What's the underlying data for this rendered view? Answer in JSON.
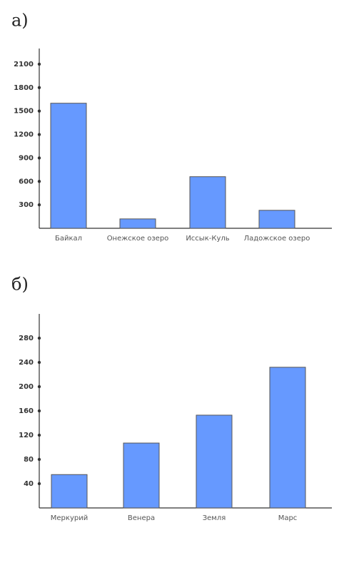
{
  "chart_data": [
    {
      "type": "bar",
      "title": "а)",
      "categories": [
        "Байкал",
        "Онежское озеро",
        "Иссык-Куль",
        "Ладожское озеро"
      ],
      "values": [
        1600,
        120,
        660,
        230
      ],
      "color": "#6699ff",
      "ylim": [
        0,
        2300
      ],
      "yticks": [
        300,
        600,
        900,
        1200,
        1500,
        1800,
        2100
      ]
    },
    {
      "type": "bar",
      "title": "б)",
      "categories": [
        "Меркурий",
        "Венера",
        "Земля",
        "Марс"
      ],
      "values": [
        55,
        107,
        153,
        232
      ],
      "color": "#6699ff",
      "ylim": [
        0,
        320
      ],
      "yticks": [
        40,
        80,
        120,
        160,
        200,
        240,
        280
      ]
    }
  ]
}
